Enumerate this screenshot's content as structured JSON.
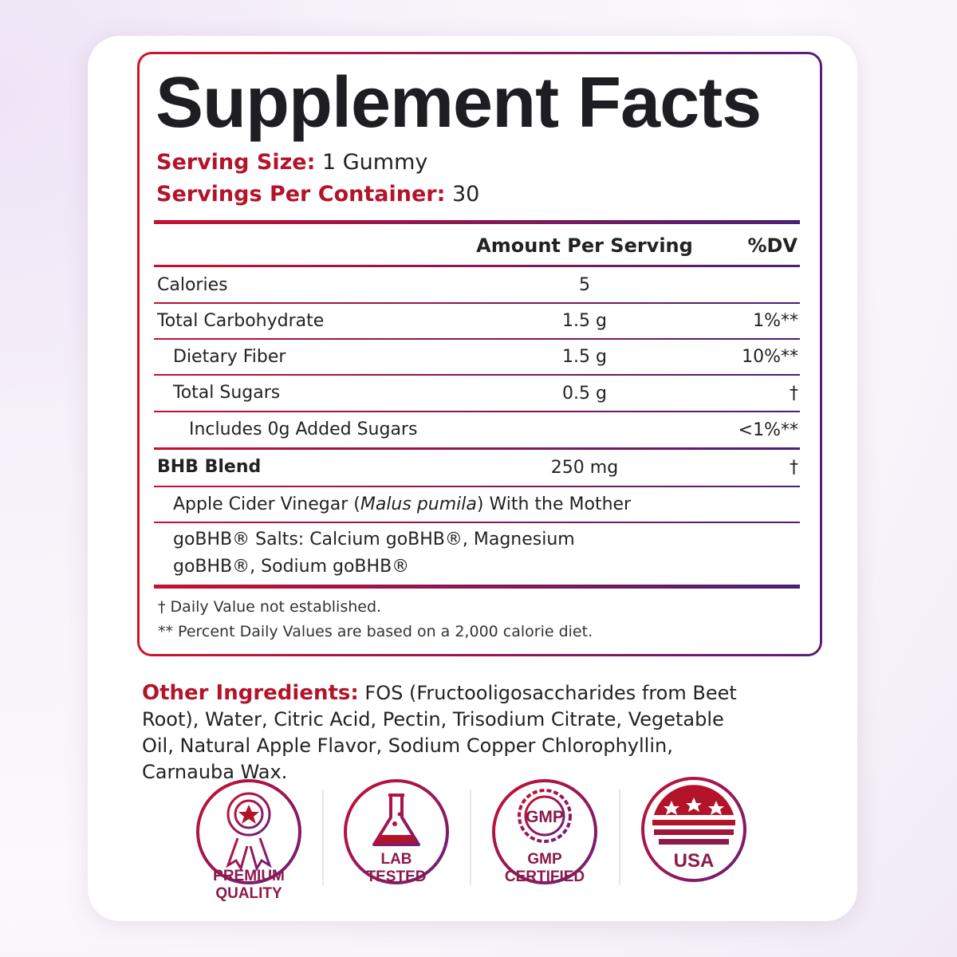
{
  "title": "Supplement Facts",
  "serving_size": {
    "label": "Serving Size:",
    "value": "1 Gummy"
  },
  "servings_per_container": {
    "label": "Servings Per Container:",
    "value": "30"
  },
  "table": {
    "header": {
      "amount": "Amount Per Serving",
      "dv": "%DV"
    },
    "rows": [
      {
        "name": "Calories",
        "amount": "5",
        "indent": 0
      },
      {
        "name": "Total Carbohydrate",
        "amount": "1.5 g",
        "dv": "1%**",
        "indent": 0
      },
      {
        "name": "Dietary Fiber",
        "amount": "1.5 g",
        "dv": "10%**",
        "indent": 1
      },
      {
        "name": "Total Sugars",
        "amount": "0.5 g",
        "dv": "†",
        "indent": 1
      },
      {
        "name": "Includes 0g Added Sugars",
        "dv": "<1%**",
        "indent": 2
      },
      {
        "name": "BHB Blend",
        "amount": "250 mg",
        "dv": "†",
        "indent": 0,
        "bold": true
      },
      {
        "name": [
          {
            "text": "Apple Cider Vinegar ("
          },
          {
            "text": "Malus pumila",
            "italic": true
          },
          {
            "text": ") With the Mother"
          }
        ],
        "indent": 1
      },
      {
        "name": "goBHB® Salts: Calcium goBHB®, Magnesium goBHB®, Sodium goBHB®",
        "indent": 1
      }
    ]
  },
  "footnotes": [
    "† Daily Value not established.",
    "** Percent Daily Values are based on a 2,000 calorie diet."
  ],
  "other_ingredients": {
    "label": "Other Ingredients:",
    "text": "FOS (Fructooligosaccharides from Beet Root), Water, Citric Acid, Pectin, Trisodium Citrate, Vegetable Oil, Natural Apple Flavor, Sodium Copper Chlorophyllin, Carnauba Wax."
  },
  "badges": [
    {
      "label": [
        "PREMIUM",
        "QUALITY"
      ]
    },
    {
      "label": [
        "LAB",
        "TESTED"
      ]
    },
    {
      "seal": "GMP",
      "label": [
        "GMP",
        "CERTIFIED"
      ]
    },
    {
      "label": [
        "USA"
      ]
    }
  ]
}
